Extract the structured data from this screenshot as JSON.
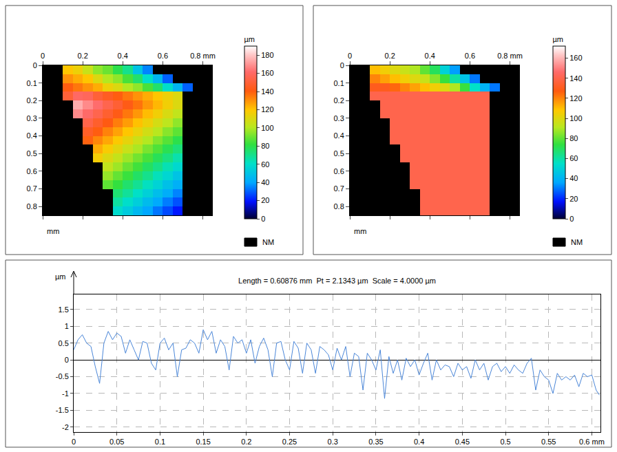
{
  "chart_data": [
    {
      "type": "heatmap",
      "x": [
        0.025,
        0.075,
        0.125,
        0.175,
        0.225,
        0.275,
        0.325,
        0.375,
        0.425,
        0.475,
        0.525,
        0.575,
        0.625,
        0.675,
        0.725,
        0.775,
        0.825
      ],
      "y": [
        0.025,
        0.075,
        0.125,
        0.175,
        0.225,
        0.275,
        0.325,
        0.375,
        0.425,
        0.475,
        0.525,
        0.575,
        0.625,
        0.675,
        0.725,
        0.775,
        0.825
      ],
      "cells": [
        [
          null,
          null,
          120,
          115,
          105,
          95,
          90,
          80,
          70,
          50,
          35,
          null,
          null,
          null,
          null,
          null,
          null
        ],
        [
          null,
          null,
          130,
          125,
          120,
          110,
          100,
          95,
          85,
          75,
          60,
          45,
          30,
          null,
          null,
          null,
          null
        ],
        [
          null,
          null,
          140,
          135,
          130,
          125,
          115,
          110,
          100,
          95,
          85,
          75,
          60,
          45,
          30,
          null,
          null
        ],
        [
          null,
          null,
          150,
          160,
          158,
          150,
          145,
          140,
          135,
          130,
          125,
          120,
          115,
          110,
          null,
          null,
          null
        ],
        [
          null,
          null,
          null,
          175,
          168,
          162,
          155,
          149,
          142,
          136,
          129,
          123,
          116,
          110,
          null,
          null,
          null
        ],
        [
          null,
          null,
          null,
          168,
          161,
          155,
          148,
          142,
          135,
          129,
          122,
          116,
          109,
          103,
          null,
          null,
          null
        ],
        [
          null,
          null,
          null,
          null,
          154,
          147,
          141,
          134,
          128,
          121,
          115,
          108,
          102,
          95,
          null,
          null,
          null
        ],
        [
          null,
          null,
          null,
          null,
          146,
          140,
          133,
          127,
          120,
          114,
          107,
          101,
          94,
          88,
          null,
          null,
          null
        ],
        [
          null,
          null,
          null,
          null,
          139,
          132,
          126,
          119,
          113,
          106,
          100,
          93,
          87,
          80,
          null,
          null,
          null
        ],
        [
          null,
          null,
          null,
          null,
          null,
          125,
          118,
          112,
          105,
          99,
          92,
          86,
          79,
          73,
          null,
          null,
          null
        ],
        [
          null,
          null,
          null,
          null,
          null,
          117,
          110,
          104,
          97,
          91,
          85,
          78,
          72,
          65,
          null,
          null,
          null
        ],
        [
          null,
          null,
          null,
          null,
          null,
          null,
          103,
          97,
          90,
          84,
          77,
          71,
          64,
          58,
          null,
          null,
          null
        ],
        [
          null,
          null,
          null,
          null,
          null,
          null,
          96,
          89,
          83,
          76,
          70,
          63,
          57,
          50,
          null,
          null,
          null
        ],
        [
          null,
          null,
          null,
          null,
          null,
          null,
          88,
          82,
          75,
          69,
          62,
          56,
          49,
          43,
          null,
          null,
          null
        ],
        [
          null,
          null,
          null,
          null,
          null,
          null,
          null,
          74,
          68,
          61,
          55,
          48,
          42,
          35,
          null,
          null,
          null
        ],
        [
          null,
          null,
          null,
          null,
          null,
          null,
          null,
          67,
          60,
          54,
          47,
          41,
          34,
          28,
          null,
          null,
          null
        ],
        [
          null,
          null,
          null,
          null,
          null,
          null,
          null,
          59,
          53,
          46,
          40,
          33,
          27,
          20,
          null,
          null,
          null
        ]
      ],
      "zlim": [
        0,
        190
      ],
      "zticks": [
        0,
        20,
        40,
        60,
        80,
        100,
        120,
        140,
        160,
        180
      ],
      "colorbar_title": "µm",
      "no_data_label": "NM",
      "ylabel": "mm",
      "xlim": [
        0,
        0.85
      ],
      "ylim": [
        0.85,
        0
      ],
      "xticks": [
        0,
        0.2,
        0.4,
        0.6,
        {
          "value": 0.8,
          "label": "0.8 mm"
        }
      ],
      "yticks": [
        0,
        0.1,
        0.2,
        0.3,
        0.4,
        0.5,
        0.6,
        0.7,
        0.8
      ]
    },
    {
      "type": "heatmap",
      "x": [
        0.025,
        0.075,
        0.125,
        0.175,
        0.225,
        0.275,
        0.325,
        0.375,
        0.425,
        0.475,
        0.525,
        0.575,
        0.625,
        0.675,
        0.725,
        0.775,
        0.825
      ],
      "y": [
        0.025,
        0.075,
        0.125,
        0.175,
        0.225,
        0.275,
        0.325,
        0.375,
        0.425,
        0.475,
        0.525,
        0.575,
        0.625,
        0.675,
        0.725,
        0.775,
        0.825
      ],
      "cells": [
        [
          null,
          null,
          110,
          105,
          100,
          95,
          90,
          80,
          70,
          50,
          35,
          null,
          null,
          null,
          null,
          null,
          null
        ],
        [
          null,
          null,
          120,
          115,
          110,
          105,
          100,
          95,
          85,
          75,
          60,
          45,
          30,
          null,
          null,
          null,
          null
        ],
        [
          null,
          null,
          130,
          130,
          125,
          120,
          115,
          110,
          105,
          100,
          90,
          75,
          55,
          40,
          30,
          null,
          null
        ],
        [
          null,
          null,
          140,
          140,
          140,
          140,
          140,
          140,
          140,
          140,
          140,
          140,
          140,
          140,
          null,
          null,
          null
        ],
        [
          null,
          null,
          null,
          140,
          140,
          140,
          140,
          140,
          140,
          140,
          140,
          140,
          140,
          140,
          null,
          null,
          null
        ],
        [
          null,
          null,
          null,
          140,
          140,
          140,
          140,
          140,
          140,
          140,
          140,
          140,
          140,
          140,
          null,
          null,
          null
        ],
        [
          null,
          null,
          null,
          null,
          140,
          140,
          140,
          140,
          140,
          140,
          140,
          140,
          140,
          140,
          null,
          null,
          null
        ],
        [
          null,
          null,
          null,
          null,
          140,
          140,
          140,
          140,
          140,
          140,
          140,
          140,
          140,
          140,
          null,
          null,
          null
        ],
        [
          null,
          null,
          null,
          null,
          140,
          140,
          140,
          140,
          140,
          140,
          140,
          140,
          140,
          140,
          null,
          null,
          null
        ],
        [
          null,
          null,
          null,
          null,
          null,
          140,
          140,
          140,
          140,
          140,
          140,
          140,
          140,
          140,
          null,
          null,
          null
        ],
        [
          null,
          null,
          null,
          null,
          null,
          140,
          140,
          140,
          140,
          140,
          140,
          140,
          140,
          140,
          null,
          null,
          null
        ],
        [
          null,
          null,
          null,
          null,
          null,
          null,
          140,
          140,
          140,
          140,
          140,
          140,
          140,
          140,
          null,
          null,
          null
        ],
        [
          null,
          null,
          null,
          null,
          null,
          null,
          140,
          140,
          140,
          140,
          140,
          140,
          140,
          140,
          null,
          null,
          null
        ],
        [
          null,
          null,
          null,
          null,
          null,
          null,
          140,
          140,
          140,
          140,
          140,
          140,
          140,
          140,
          null,
          null,
          null
        ],
        [
          null,
          null,
          null,
          null,
          null,
          null,
          null,
          140,
          140,
          140,
          140,
          140,
          140,
          140,
          null,
          null,
          null
        ],
        [
          null,
          null,
          null,
          null,
          null,
          null,
          null,
          140,
          140,
          140,
          140,
          140,
          140,
          140,
          null,
          null,
          null
        ],
        [
          null,
          null,
          null,
          null,
          null,
          null,
          null,
          140,
          140,
          140,
          140,
          140,
          140,
          140,
          null,
          null,
          null
        ]
      ],
      "zlim": [
        0,
        172
      ],
      "zticks": [
        0,
        20,
        40,
        60,
        80,
        100,
        120,
        140,
        160
      ],
      "colorbar_title": "µm",
      "no_data_label": "NM",
      "ylabel": "mm",
      "xlim": [
        0,
        0.85
      ],
      "ylim": [
        0.85,
        0
      ],
      "xticks": [
        0,
        0.2,
        0.4,
        0.6,
        {
          "value": 0.8,
          "label": "0.8 mm"
        }
      ],
      "yticks": [
        0,
        0.1,
        0.2,
        0.3,
        0.4,
        0.5,
        0.6,
        0.7,
        0.8
      ]
    },
    {
      "type": "line",
      "title": "Length = 0.60876 mm  Pt = 2.1343 µm  Scale = 4.0000 µm",
      "ylabel": "µm",
      "color": "#4a86d8",
      "grid": true,
      "x": [
        0,
        0.005,
        0.01,
        0.015,
        0.02,
        0.025,
        0.03,
        0.035,
        0.04,
        0.045,
        0.05,
        0.055,
        0.06,
        0.065,
        0.07,
        0.075,
        0.08,
        0.085,
        0.09,
        0.095,
        0.1,
        0.105,
        0.11,
        0.115,
        0.12,
        0.125,
        0.13,
        0.135,
        0.14,
        0.145,
        0.15,
        0.155,
        0.16,
        0.165,
        0.17,
        0.175,
        0.18,
        0.185,
        0.19,
        0.195,
        0.2,
        0.205,
        0.21,
        0.215,
        0.22,
        0.225,
        0.23,
        0.235,
        0.24,
        0.245,
        0.25,
        0.255,
        0.26,
        0.265,
        0.27,
        0.275,
        0.28,
        0.285,
        0.29,
        0.295,
        0.3,
        0.305,
        0.31,
        0.315,
        0.32,
        0.325,
        0.33,
        0.335,
        0.34,
        0.345,
        0.35,
        0.355,
        0.36,
        0.365,
        0.37,
        0.375,
        0.38,
        0.385,
        0.39,
        0.395,
        0.4,
        0.405,
        0.41,
        0.415,
        0.42,
        0.425,
        0.43,
        0.435,
        0.44,
        0.445,
        0.45,
        0.455,
        0.46,
        0.465,
        0.47,
        0.475,
        0.48,
        0.485,
        0.49,
        0.495,
        0.5,
        0.505,
        0.51,
        0.515,
        0.52,
        0.525,
        0.53,
        0.535,
        0.54,
        0.545,
        0.55,
        0.555,
        0.56,
        0.565,
        0.57,
        0.575,
        0.58,
        0.585,
        0.59,
        0.595,
        0.6,
        0.605,
        0.6088
      ],
      "values": [
        0.3,
        0.6,
        0.75,
        0.5,
        0.4,
        -0.2,
        -0.7,
        0.5,
        0.85,
        0.6,
        0.8,
        0.7,
        0.2,
        0.6,
        0.3,
        0.0,
        0.55,
        0.5,
        -0.1,
        -0.3,
        0.5,
        0.65,
        0.3,
        0.5,
        -0.5,
        0.3,
        0.35,
        0.6,
        0.5,
        0.2,
        0.9,
        0.6,
        0.85,
        0.2,
        0.6,
        0.4,
        -0.3,
        0.7,
        0.5,
        0.6,
        0.2,
        0.6,
        -0.1,
        0.4,
        0.65,
        0.3,
        -0.5,
        0.5,
        0.55,
        0.0,
        -0.3,
        0.55,
        0.35,
        -0.4,
        0.5,
        0.3,
        -0.4,
        0.4,
        0.3,
        0.15,
        -0.3,
        0.35,
        0.0,
        0.4,
        -0.5,
        0.2,
        0.1,
        -0.9,
        0.2,
        0.0,
        -0.3,
        0.3,
        -1.15,
        0.1,
        -0.4,
        0.0,
        -0.6,
        0.05,
        -0.2,
        0.0,
        -0.45,
        -0.1,
        0.2,
        -0.6,
        0.0,
        -0.3,
        -0.15,
        -0.2,
        -0.5,
        -0.1,
        -0.3,
        -0.2,
        -0.55,
        0.0,
        -0.3,
        -0.1,
        -0.6,
        -0.2,
        -0.1,
        -0.35,
        -0.2,
        -0.4,
        -0.15,
        -0.3,
        -0.4,
        -0.1,
        0.05,
        -0.9,
        -0.3,
        -0.5,
        -0.6,
        -1.0,
        -0.4,
        -0.6,
        -0.5,
        -0.6,
        -0.45,
        -0.8,
        -0.4,
        -0.5,
        -0.45,
        -0.9,
        -1.05
      ],
      "xlim": [
        0,
        0.61
      ],
      "ylim": [
        -2.15,
        1.95
      ],
      "xticks": [
        0,
        0.05,
        0.1,
        0.15,
        0.2,
        0.25,
        0.3,
        0.35,
        0.4,
        0.45,
        0.5,
        0.55,
        {
          "value": 0.6,
          "label": "0.6 mm"
        }
      ],
      "yticks": [
        -2,
        -1.5,
        -1,
        -0.5,
        0,
        0.5,
        1,
        1.5
      ]
    }
  ]
}
